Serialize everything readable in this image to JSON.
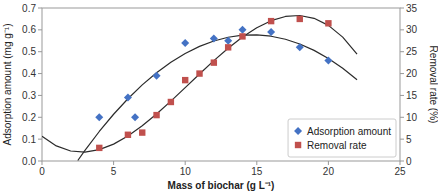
{
  "chart_data": {
    "type": "scatter",
    "xlabel": "Mass of biochar (g L⁻¹)",
    "ylabel": "Adsorption amount (mg g⁻¹)",
    "y2label": "Removal rate (%)",
    "xlim": [
      0,
      25
    ],
    "xticks": [
      0,
      5,
      10,
      15,
      20,
      25
    ],
    "ylim": [
      0,
      0.7
    ],
    "yticks": [
      {
        "value": 0,
        "label": "0.0"
      },
      0.1,
      0.2,
      0.3,
      0.4,
      0.5,
      0.6,
      0.7
    ],
    "y2lim": [
      0,
      35
    ],
    "y2ticks": [
      0,
      5,
      10,
      15,
      20,
      25,
      30,
      35
    ],
    "grid": false,
    "legend": "lower right",
    "series": [
      {
        "type": "line",
        "axis": "y",
        "color": "#2b2b2b",
        "x": [
          2.5,
          3,
          4,
          5,
          6,
          7,
          8,
          9,
          10,
          11,
          12,
          13,
          14,
          15,
          16,
          17,
          18,
          19,
          20,
          21,
          22
        ],
        "values": [
          0.0024,
          0.0485,
          0.135,
          0.2139,
          0.2849,
          0.3483,
          0.4039,
          0.4518,
          0.492,
          0.5244,
          0.5492,
          0.5662,
          0.5755,
          0.577,
          0.5709,
          0.5571,
          0.5354,
          0.5062,
          0.4691,
          0.4243,
          0.3718
        ]
      },
      {
        "type": "line",
        "axis": "y2",
        "color": "#2b2b2b",
        "x": [
          0,
          1,
          2,
          3,
          4,
          5,
          6,
          7,
          8,
          9,
          10,
          11,
          12,
          13,
          14,
          15,
          16,
          17,
          18,
          19,
          20,
          21,
          22
        ],
        "values": [
          5.6596,
          3.4533,
          2.2819,
          2.0338,
          2.5977,
          3.8619,
          5.715,
          8.0452,
          10.7412,
          13.6915,
          16.7846,
          19.9088,
          22.9526,
          25.8047,
          28.3533,
          30.4869,
          32.0942,
          33.0636,
          33.2834,
          32.6423,
          31.0287,
          28.331,
          24.4377
        ]
      },
      {
        "name": "Adsorption amount",
        "type": "scatter",
        "axis": "y",
        "marker": "diamond",
        "color": "#4472c4",
        "x": [
          4,
          6,
          6.5,
          8,
          10,
          12,
          13,
          14,
          16,
          18,
          20
        ],
        "values": [
          0.2,
          0.29,
          0.2,
          0.39,
          0.54,
          0.56,
          0.55,
          0.6,
          0.59,
          0.52,
          0.46
        ]
      },
      {
        "name": "Removal rate",
        "type": "scatter",
        "axis": "y2",
        "marker": "square",
        "color": "#c0504d",
        "x": [
          4,
          6,
          7,
          8,
          9,
          10,
          11,
          12,
          13,
          14,
          16,
          18,
          20
        ],
        "values": [
          3.0,
          6.0,
          6.5,
          10.5,
          13.5,
          18.5,
          20.0,
          22.5,
          26.0,
          28.5,
          32.0,
          32.5,
          31.5
        ]
      }
    ]
  }
}
